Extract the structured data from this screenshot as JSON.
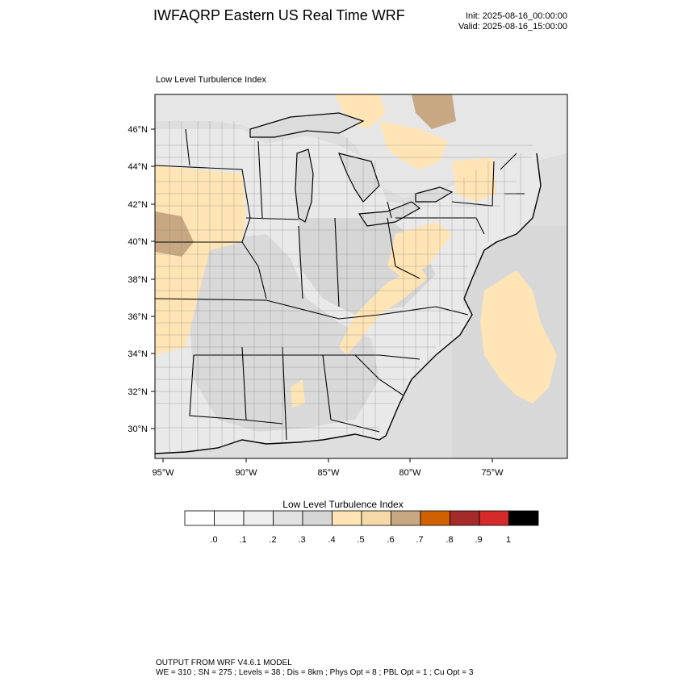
{
  "header": {
    "title": "IWFAQRP Eastern US Real Time WRF",
    "init": "Init: 2025-08-16_00:00:00",
    "valid": "Valid: 2025-08-16_15:00:00"
  },
  "map": {
    "subtitle": "Low Level Turbulence Index",
    "lat_labels": [
      "46°N",
      "44°N",
      "42°N",
      "40°N",
      "38°N",
      "36°N",
      "34°N",
      "32°N",
      "30°N"
    ],
    "lon_labels": [
      "95°W",
      "90°W",
      "85°W",
      "80°W",
      "75°W"
    ]
  },
  "colorbar": {
    "title": "Low Level Turbulence Index",
    "colors": [
      "#ffffff",
      "#f7f7f7",
      "#efefef",
      "#e2e2e2",
      "#d6d6d6",
      "#ffe4b5",
      "#f6d9a8",
      "#c8a883",
      "#d06000",
      "#a52a2a",
      "#d42a2a",
      "#000000"
    ],
    "labels": [
      ".0",
      ".1",
      ".2",
      ".3",
      ".4",
      ".5",
      ".6",
      ".7",
      ".8",
      ".9",
      "1"
    ]
  },
  "footer": {
    "line1": "OUTPUT FROM WRF V4.6.1 MODEL",
    "line2": "WE = 310 ; SN = 275 ; Levels = 38 ; Dis = 8km ; Phys Opt = 8 ; PBL Opt = 1 ; Cu Opt = 3"
  }
}
